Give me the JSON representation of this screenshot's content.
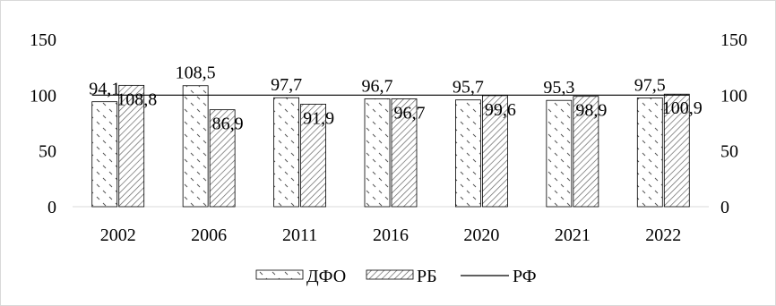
{
  "chart_data": {
    "type": "bar",
    "categories": [
      "2002",
      "2006",
      "2011",
      "2016",
      "2020",
      "2021",
      "2022"
    ],
    "series": [
      {
        "name": "ДФО",
        "kind": "bar",
        "pattern": "dots-diagonal",
        "values": [
          94.1,
          108.5,
          97.7,
          96.7,
          95.7,
          95.3,
          97.5
        ],
        "labels": [
          "94,1",
          "108,5",
          "97,7",
          "96,7",
          "95,7",
          "95,3",
          "97,5"
        ]
      },
      {
        "name": "РБ",
        "kind": "bar",
        "pattern": "hatch-diagonal",
        "values": [
          108.8,
          86.9,
          91.9,
          96.7,
          99.6,
          98.9,
          100.9
        ],
        "labels": [
          "108,8",
          "86,9",
          "91,9",
          "96,7",
          "99,6",
          "98,9",
          "100,9"
        ]
      },
      {
        "name": "РФ",
        "kind": "line",
        "values": [
          100,
          100,
          100,
          100,
          100,
          100,
          100
        ]
      }
    ],
    "y_ticks": [
      "0",
      "50",
      "100",
      "150"
    ],
    "ylim": [
      0,
      150
    ],
    "secondary_y_ticks": [
      "0",
      "50",
      "100",
      "150"
    ],
    "grid": false,
    "legend_position": "bottom",
    "colors": {
      "bar_outline": "#000000",
      "pattern": "#555555",
      "line": "#000000"
    }
  }
}
